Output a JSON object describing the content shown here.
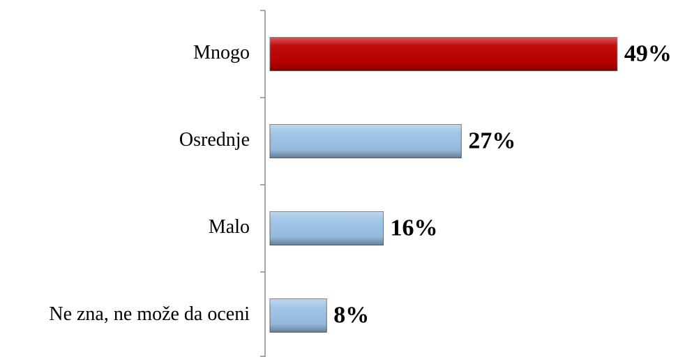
{
  "chart_data": {
    "type": "bar",
    "orientation": "horizontal",
    "categories": [
      "Mnogo",
      "Osrednje",
      "Malo",
      "Ne zna, ne može da oceni"
    ],
    "values": [
      49,
      27,
      16,
      8
    ],
    "value_labels": [
      "49%",
      "27%",
      "16%",
      "8%"
    ],
    "colors": [
      "#c00000",
      "#9dc3e6",
      "#9dc3e6",
      "#9dc3e6"
    ]
  }
}
